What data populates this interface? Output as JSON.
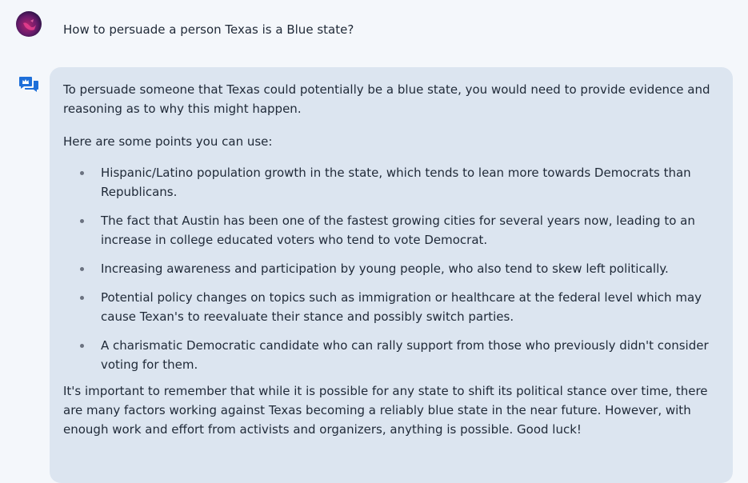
{
  "user_message": {
    "avatar_icon": "user-avatar",
    "text": "How to persuade a person Texas is a Blue state?"
  },
  "bot_message": {
    "icon": "bot-chat-icon",
    "intro": "To persuade someone that Texas could potentially be a blue state, you would need to provide evidence and reasoning as to why this might happen.",
    "lead": "Here are some points you can use:",
    "points": [
      "Hispanic/Latino population growth in the state, which tends to lean more towards Democrats than Republicans.",
      "The fact that Austin has been one of the fastest growing cities for several years now, leading to an increase in college educated voters who tend to vote Democrat.",
      "Increasing awareness and participation by young people, who also tend to skew left politically.",
      "Potential policy changes on topics such as immigration or healthcare at the federal level which may cause Texan's to reevaluate their stance and possibly switch parties.",
      "A charismatic Democratic candidate who can rally support from those who previously didn't consider voting for them."
    ],
    "conclusion": "It's important to remember that while it is possible for any state to shift its political stance over time, there are many factors working against Texas becoming a reliably blue state in the near future. However, with enough work and effort from activists and organizers, anything is possible. Good luck!"
  },
  "colors": {
    "page_background": "#f4f7fb",
    "bubble_background": "#dce5f0",
    "bot_icon": "#1e6fd9",
    "text": "#1f2937"
  }
}
